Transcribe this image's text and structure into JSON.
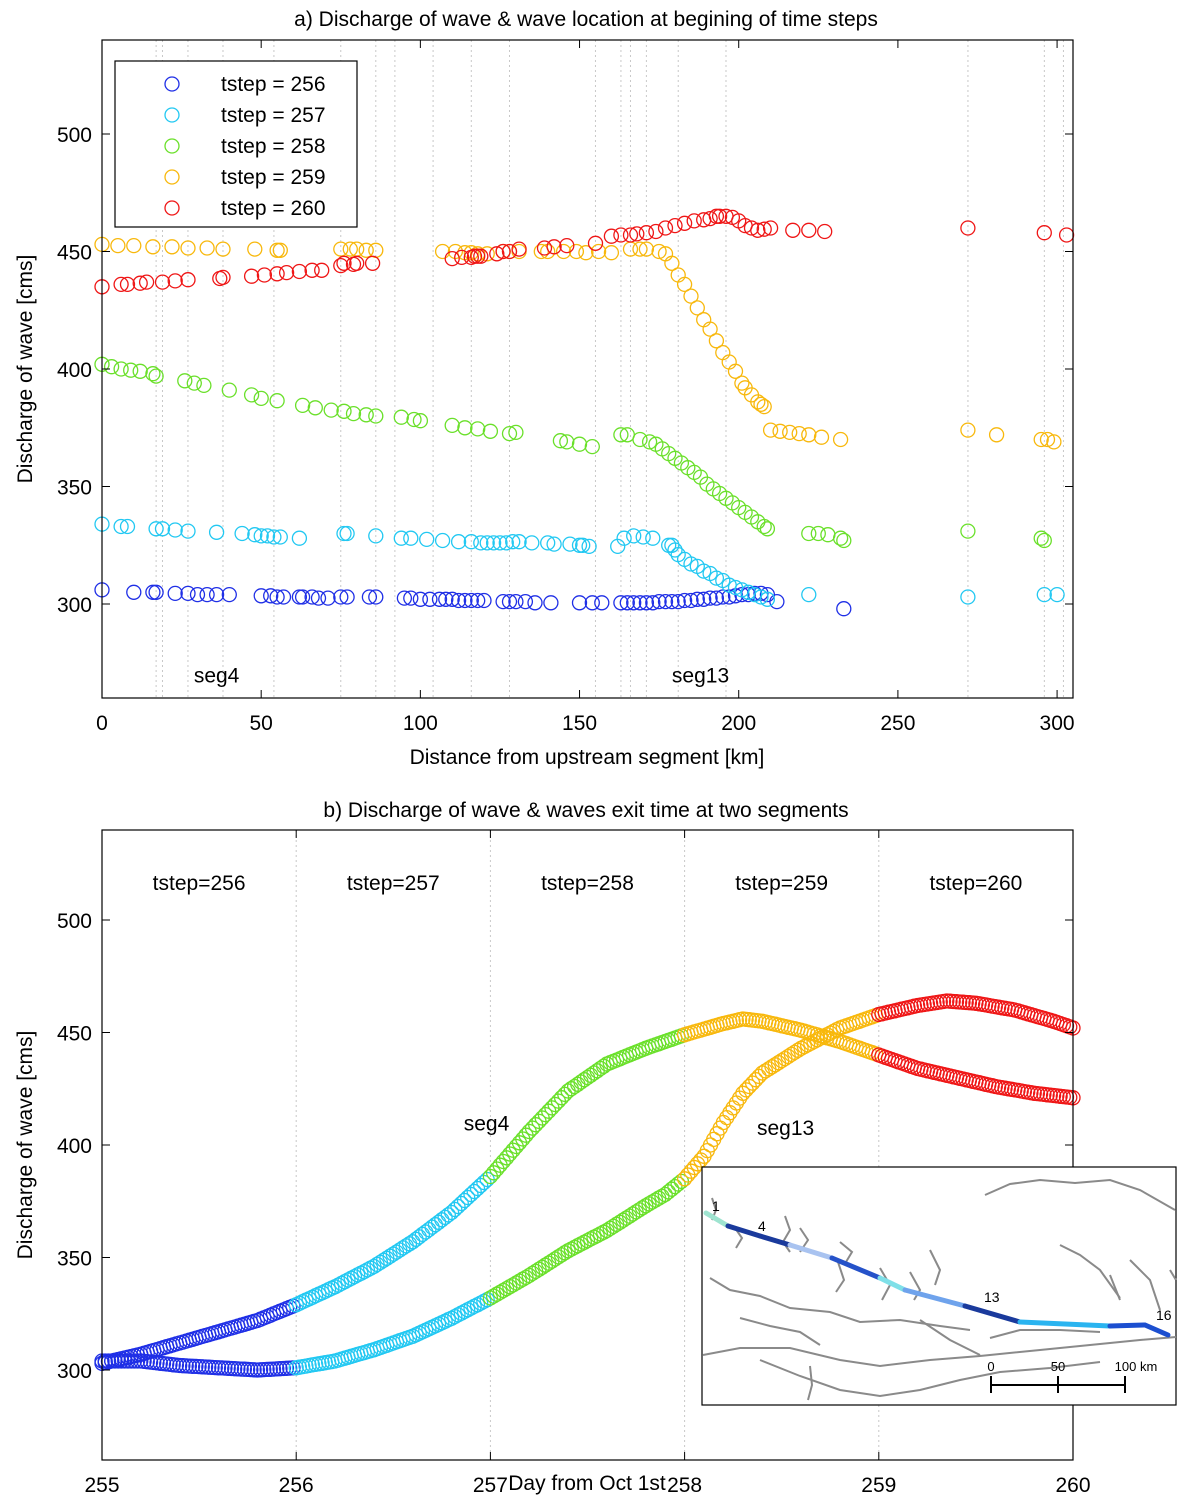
{
  "chart_data": [
    {
      "type": "scatter",
      "title": "a) Discharge of wave & wave location at begining of time steps",
      "xlabel": "Distance from upstream segment [km]",
      "ylabel": "Discharge of wave [cms]",
      "xlim": [
        0,
        305
      ],
      "ylim": [
        260,
        540
      ],
      "xticks": [
        0,
        50,
        100,
        150,
        200,
        250,
        300
      ],
      "yticks": [
        300,
        350,
        400,
        450,
        500
      ],
      "segment_lines_x": [
        17,
        19,
        27,
        38,
        54,
        75,
        86,
        92,
        104,
        116,
        128,
        155,
        163,
        166,
        171,
        181,
        196,
        272,
        296,
        302
      ],
      "annotations": [
        {
          "text": "seg4",
          "x": 36,
          "y": 270
        },
        {
          "text": "seg13",
          "x": 188,
          "y": 270
        }
      ],
      "legend_position": "top-left",
      "series": [
        {
          "name": "tstep = 256",
          "color": "#1f2fe6",
          "x": [
            0,
            10,
            16,
            17,
            23,
            27,
            30,
            33,
            36,
            40,
            50,
            53,
            55,
            57,
            62,
            63,
            66,
            68,
            71,
            75,
            77,
            84,
            86,
            95,
            97,
            100,
            103,
            106,
            108,
            110,
            112,
            114,
            116,
            118,
            120,
            126,
            128,
            130,
            133,
            136,
            141,
            150,
            154,
            157,
            163,
            165,
            167,
            169,
            171,
            173,
            175,
            177,
            179,
            181,
            183,
            185,
            187,
            189,
            191,
            193,
            195,
            197,
            199,
            201,
            203,
            205,
            207,
            209,
            212,
            233
          ],
          "y": [
            306,
            305,
            305,
            305,
            304.5,
            304.5,
            304,
            304,
            304,
            304,
            303.5,
            303.5,
            303,
            303,
            303,
            303,
            303,
            302.5,
            302.5,
            303,
            303,
            303,
            303,
            302.5,
            302.5,
            302,
            302,
            302,
            302,
            302,
            301.5,
            301.5,
            301.5,
            301.5,
            301.5,
            301,
            301,
            301,
            301,
            300.5,
            300.5,
            300.5,
            300.5,
            300.5,
            300.5,
            300.5,
            300.5,
            300.5,
            300.5,
            300.5,
            301,
            301,
            301,
            301,
            301.5,
            301.5,
            302,
            302,
            302.5,
            302.5,
            303,
            303,
            303.5,
            304,
            304,
            304.5,
            304.5,
            304,
            301,
            298
          ]
        },
        {
          "name": "tstep = 257",
          "color": "#22c8f2",
          "x": [
            0,
            6,
            8,
            17,
            19,
            23,
            27,
            36,
            44,
            48,
            50,
            52,
            54,
            56,
            62,
            76,
            77,
            86,
            94,
            97,
            102,
            107,
            112,
            116,
            119,
            121,
            123,
            125,
            127,
            129,
            131,
            135,
            140,
            142,
            147,
            150,
            151,
            153,
            162,
            164,
            167,
            170,
            173,
            178,
            179,
            180,
            181,
            183,
            185,
            187,
            189,
            191,
            193,
            195,
            197,
            199,
            201,
            203,
            205,
            207,
            209,
            222,
            272,
            296,
            300
          ],
          "y": [
            334,
            333,
            333,
            332,
            332,
            331.5,
            331,
            330.5,
            330,
            329.5,
            329,
            329,
            328.5,
            328.5,
            328,
            330,
            330,
            329,
            328,
            328,
            327.5,
            327,
            326.5,
            326.5,
            326,
            326,
            326,
            326,
            326,
            326.5,
            326.5,
            326,
            326,
            325.5,
            325.5,
            325,
            325,
            324.5,
            324.5,
            328,
            329,
            328.5,
            328,
            325,
            325,
            323,
            321,
            319,
            317,
            316,
            314,
            313,
            311,
            310,
            308,
            307,
            306,
            305,
            304,
            303,
            302,
            304,
            303,
            304,
            304
          ]
        },
        {
          "name": "tstep = 258",
          "color": "#6ae02a",
          "x": [
            0,
            3,
            6,
            9,
            12,
            16,
            17,
            26,
            29,
            32,
            40,
            47,
            50,
            55,
            63,
            67,
            72,
            76,
            79,
            83,
            86,
            94,
            98,
            100,
            110,
            114,
            118,
            122,
            128,
            130,
            144,
            146,
            150,
            154,
            163,
            165,
            169,
            172,
            174,
            176,
            178,
            180,
            182,
            184,
            186,
            188,
            190,
            192,
            194,
            196,
            198,
            200,
            202,
            204,
            206,
            208,
            209,
            222,
            225,
            228,
            232,
            233,
            272,
            295,
            296
          ],
          "y": [
            402,
            401,
            400,
            399.5,
            399,
            398,
            397,
            395,
            394,
            393,
            391,
            389,
            387.5,
            386.5,
            384.5,
            383.5,
            382.5,
            382,
            381,
            380.5,
            380,
            379.5,
            378.5,
            378,
            376,
            375,
            374.5,
            373.5,
            372.5,
            373,
            369.5,
            369,
            368,
            367,
            372,
            372,
            370,
            369,
            368,
            366,
            364,
            362,
            360,
            358,
            356,
            354,
            351,
            349,
            347,
            345,
            343,
            341,
            339,
            337,
            335,
            333,
            332,
            330,
            330,
            329.5,
            328,
            327,
            331,
            328,
            327
          ]
        },
        {
          "name": "tstep = 259",
          "color": "#f8b80c",
          "x": [
            0,
            5,
            10,
            16,
            22,
            27,
            33,
            38,
            48,
            55,
            56,
            75,
            78,
            80,
            83,
            86,
            107,
            111,
            114,
            116,
            118,
            121,
            126,
            128,
            131,
            138,
            140,
            145,
            149,
            152,
            156,
            160,
            166,
            169,
            171,
            175,
            177,
            179,
            181,
            183,
            185,
            187,
            189,
            191,
            193,
            195,
            197,
            199,
            201,
            202,
            204,
            206,
            207,
            208,
            210,
            213,
            216,
            219,
            222,
            226,
            232,
            272,
            281,
            295,
            297,
            299
          ],
          "y": [
            453,
            452.5,
            452.5,
            452,
            452,
            451.5,
            451.5,
            451,
            451,
            450.5,
            450.5,
            451,
            451,
            451,
            450.5,
            450.5,
            450,
            450,
            449.5,
            449.5,
            449,
            449,
            450,
            450,
            450,
            450,
            450,
            450,
            450,
            449.5,
            450,
            449.5,
            451,
            451,
            451,
            450,
            449,
            445,
            440,
            436,
            431,
            426,
            421,
            417,
            412,
            407,
            403,
            399,
            394,
            392,
            389,
            386,
            385,
            384,
            374,
            373.5,
            373,
            372.5,
            372,
            371,
            370,
            374,
            372,
            370,
            370,
            369
          ]
        },
        {
          "name": "tstep = 260",
          "color": "#ef1616",
          "x": [
            0,
            6,
            8,
            12,
            14,
            19,
            23,
            27,
            37,
            38,
            47,
            51,
            55,
            58,
            62,
            66,
            69,
            75,
            76,
            79,
            80,
            85,
            110,
            113,
            116,
            117,
            118,
            119,
            124,
            126,
            128,
            131,
            139,
            142,
            146,
            155,
            160,
            163,
            166,
            168,
            171,
            174,
            177,
            180,
            183,
            186,
            189,
            191,
            193,
            194,
            196,
            198,
            200,
            202,
            204,
            206,
            208,
            210,
            217,
            222,
            227,
            272,
            296,
            303
          ],
          "y": [
            435,
            436,
            436,
            436.5,
            437,
            437,
            437.5,
            438,
            438.5,
            439,
            439.5,
            440,
            440.5,
            441,
            441.5,
            442,
            442,
            444,
            445,
            444.5,
            445,
            445,
            447,
            447.5,
            447.5,
            448,
            448,
            448,
            449,
            450,
            450,
            451,
            451.5,
            452,
            452.5,
            453.5,
            456.5,
            457,
            457,
            457.5,
            458,
            458.5,
            460,
            461,
            462,
            463,
            463.5,
            464,
            465,
            465,
            465,
            464.5,
            463,
            461,
            460,
            459,
            459.5,
            460,
            459,
            459,
            458.5,
            460,
            458,
            457
          ]
        }
      ]
    },
    {
      "type": "scatter",
      "title": "b) Discharge of wave & waves exit time at two segments",
      "xlabel": "Day from Oct 1st",
      "ylabel": "Discharge of wave [cms]",
      "xlim": [
        255,
        260
      ],
      "ylim": [
        260,
        540
      ],
      "xticks": [
        255,
        256,
        257,
        258,
        259,
        260
      ],
      "yticks": [
        300,
        350,
        400,
        450,
        500
      ],
      "tstep_labels": [
        "tstep=256",
        "tstep=257",
        "tstep=258",
        "tstep=259",
        "tstep=260"
      ],
      "annotations": [
        {
          "text": "seg4",
          "x": 256.98,
          "y": 410
        },
        {
          "text": "seg13",
          "x": 258.52,
          "y": 408
        }
      ],
      "color_by_interval": [
        "#1f2fe6",
        "#22c8f2",
        "#6ae02a",
        "#f8b80c",
        "#ef1616"
      ],
      "series": [
        {
          "name": "seg4",
          "x": [
            255.0,
            255.2,
            255.4,
            255.6,
            255.8,
            256.0,
            256.2,
            256.4,
            256.6,
            256.8,
            257.0,
            257.2,
            257.4,
            257.6,
            257.8,
            258.0,
            258.2,
            258.3,
            258.4,
            258.6,
            258.8,
            259.0,
            259.2,
            259.4,
            259.6,
            259.8,
            260.0
          ],
          "y": [
            303,
            307,
            312,
            317,
            322,
            329,
            337,
            346,
            357,
            370,
            386,
            406,
            424,
            436,
            443,
            449,
            454,
            456,
            455,
            451,
            446,
            440,
            434,
            430,
            426,
            423,
            421
          ]
        },
        {
          "name": "seg13",
          "x": [
            255.0,
            255.2,
            255.4,
            255.6,
            255.8,
            256.0,
            256.2,
            256.4,
            256.6,
            256.8,
            257.0,
            257.2,
            257.4,
            257.6,
            257.8,
            257.9,
            258.0,
            258.1,
            258.2,
            258.3,
            258.4,
            258.6,
            258.8,
            259.0,
            259.2,
            259.35,
            259.5,
            259.7,
            259.9,
            260.0
          ],
          "y": [
            304,
            304,
            302,
            301,
            300,
            301,
            304,
            309,
            315,
            323,
            332,
            342,
            353,
            362,
            373,
            378,
            385,
            395,
            410,
            423,
            432,
            443,
            452,
            458,
            462,
            464,
            463,
            460,
            455,
            452
          ]
        }
      ]
    }
  ]
}
